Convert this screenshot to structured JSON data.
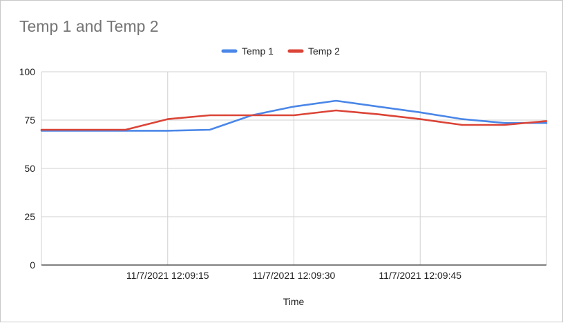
{
  "chart_data": {
    "type": "line",
    "title": "Temp 1 and Temp 2",
    "xlabel": "Time",
    "ylabel": "",
    "ylim": [
      0,
      100
    ],
    "yticks": [
      0,
      25,
      50,
      75,
      100
    ],
    "xlim": [
      "11/7/2021 12:09:00",
      "11/7/2021 12:10:00"
    ],
    "xticks": [
      "11/7/2021 12:09:15",
      "11/7/2021 12:09:30",
      "11/7/2021 12:09:45"
    ],
    "x": [
      "11/7/2021 12:09:00",
      "11/7/2021 12:09:05",
      "11/7/2021 12:09:10",
      "11/7/2021 12:09:15",
      "11/7/2021 12:09:20",
      "11/7/2021 12:09:25",
      "11/7/2021 12:09:30",
      "11/7/2021 12:09:35",
      "11/7/2021 12:09:40",
      "11/7/2021 12:09:45",
      "11/7/2021 12:09:50",
      "11/7/2021 12:09:55",
      "11/7/2021 12:10:00"
    ],
    "series": [
      {
        "name": "Temp 1",
        "color": "#4a86e8",
        "values": [
          69.5,
          69.5,
          69.5,
          69.5,
          70,
          77.5,
          82,
          85,
          82,
          79,
          75.5,
          73.5,
          73.5
        ]
      },
      {
        "name": "Temp 2",
        "color": "#db4437",
        "values": [
          70,
          70,
          70,
          75.5,
          77.5,
          77.5,
          77.5,
          80,
          78,
          75.5,
          72.5,
          72.5,
          74.5
        ]
      }
    ],
    "grid": true,
    "legend_position": "top"
  }
}
